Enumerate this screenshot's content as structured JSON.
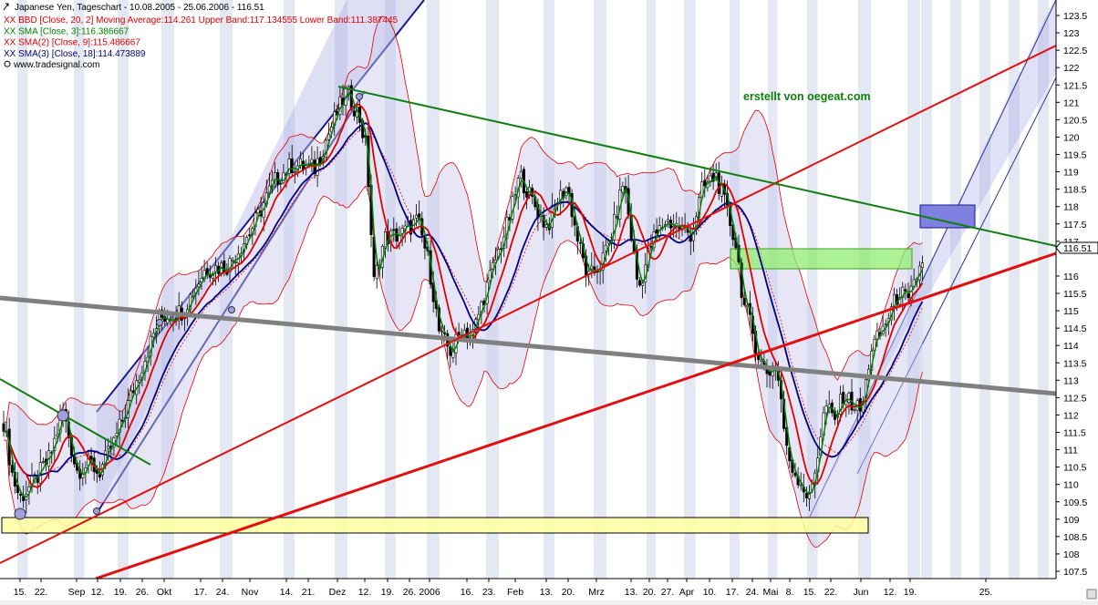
{
  "chart_data": {
    "type": "candlestick",
    "title": "Japanese Yen, Tageschart - 10.08.2005 - 25.06.2006 - 116.51",
    "legend": [
      {
        "label": "XX BBD [Close, 20, 2] Moving Average:114.261 Upper Band:117.134555 Lower Band:111.387445",
        "color": "#e00000"
      },
      {
        "label": "XX SMA [Close, 3]:116.386667",
        "color": "#008000"
      },
      {
        "label": "XX SMA(2) [Close, 9]:115.486667",
        "color": "#e00000"
      },
      {
        "label": "XX SMA(3) [Close, 18]:114.473889",
        "color": "#000080"
      },
      {
        "label": "www.tradesignal.com",
        "color": "#000000"
      }
    ],
    "annotation": "erstellt von oegeat.com",
    "last_value_label": "116.51",
    "ylim": [
      107.5,
      123.5
    ],
    "y_ticks": [
      "123.5",
      "123",
      "122.5",
      "122",
      "121.5",
      "121",
      "120.5",
      "120",
      "119.5",
      "119",
      "118.5",
      "118",
      "117.5",
      "117",
      "116.51",
      "116",
      "115.5",
      "115",
      "114.5",
      "114",
      "113.5",
      "113",
      "112.5",
      "112",
      "111.5",
      "111",
      "110.5",
      "110",
      "109.5",
      "109",
      "108.5",
      "108",
      "107.5"
    ],
    "x_ticks": [
      "15.",
      "22.",
      "Sep",
      "12.",
      "19.",
      "26.",
      "Okt",
      "17.",
      "24.",
      "Nov",
      "14.",
      "21.",
      "Dez",
      "12.",
      "19.",
      "26.",
      "2006",
      "16.",
      "23.",
      "Feb",
      "13.",
      "20.",
      "Mrz",
      "13.",
      "20.",
      "27.",
      "Apr",
      "10.",
      "17.",
      "24.",
      "Mai",
      "8.",
      "15.",
      "22.",
      "Jun",
      "12.",
      "19.",
      "25."
    ],
    "series": [
      {
        "name": "SMA [Close, 3]",
        "color": "#008000"
      },
      {
        "name": "SMA(2) [Close, 9]",
        "color": "#e00000"
      },
      {
        "name": "SMA(3) [Close, 18]",
        "color": "#000080"
      },
      {
        "name": "Bollinger Bands [Close, 20, 2]",
        "color": "#e00000"
      }
    ],
    "key_points": [
      {
        "date": "late Aug 2005",
        "price": 109.6
      },
      {
        "date": "early Dez 2005",
        "price": 121.3
      },
      {
        "date": "mid Jan 2006",
        "price": 113.6
      },
      {
        "date": "early Feb 2006",
        "price": 119.0
      },
      {
        "date": "mid Apr 2006",
        "price": 118.9
      },
      {
        "date": "mid Mai 2006",
        "price": 109.1
      },
      {
        "date": "25.06.2006",
        "price": 116.51
      }
    ]
  }
}
